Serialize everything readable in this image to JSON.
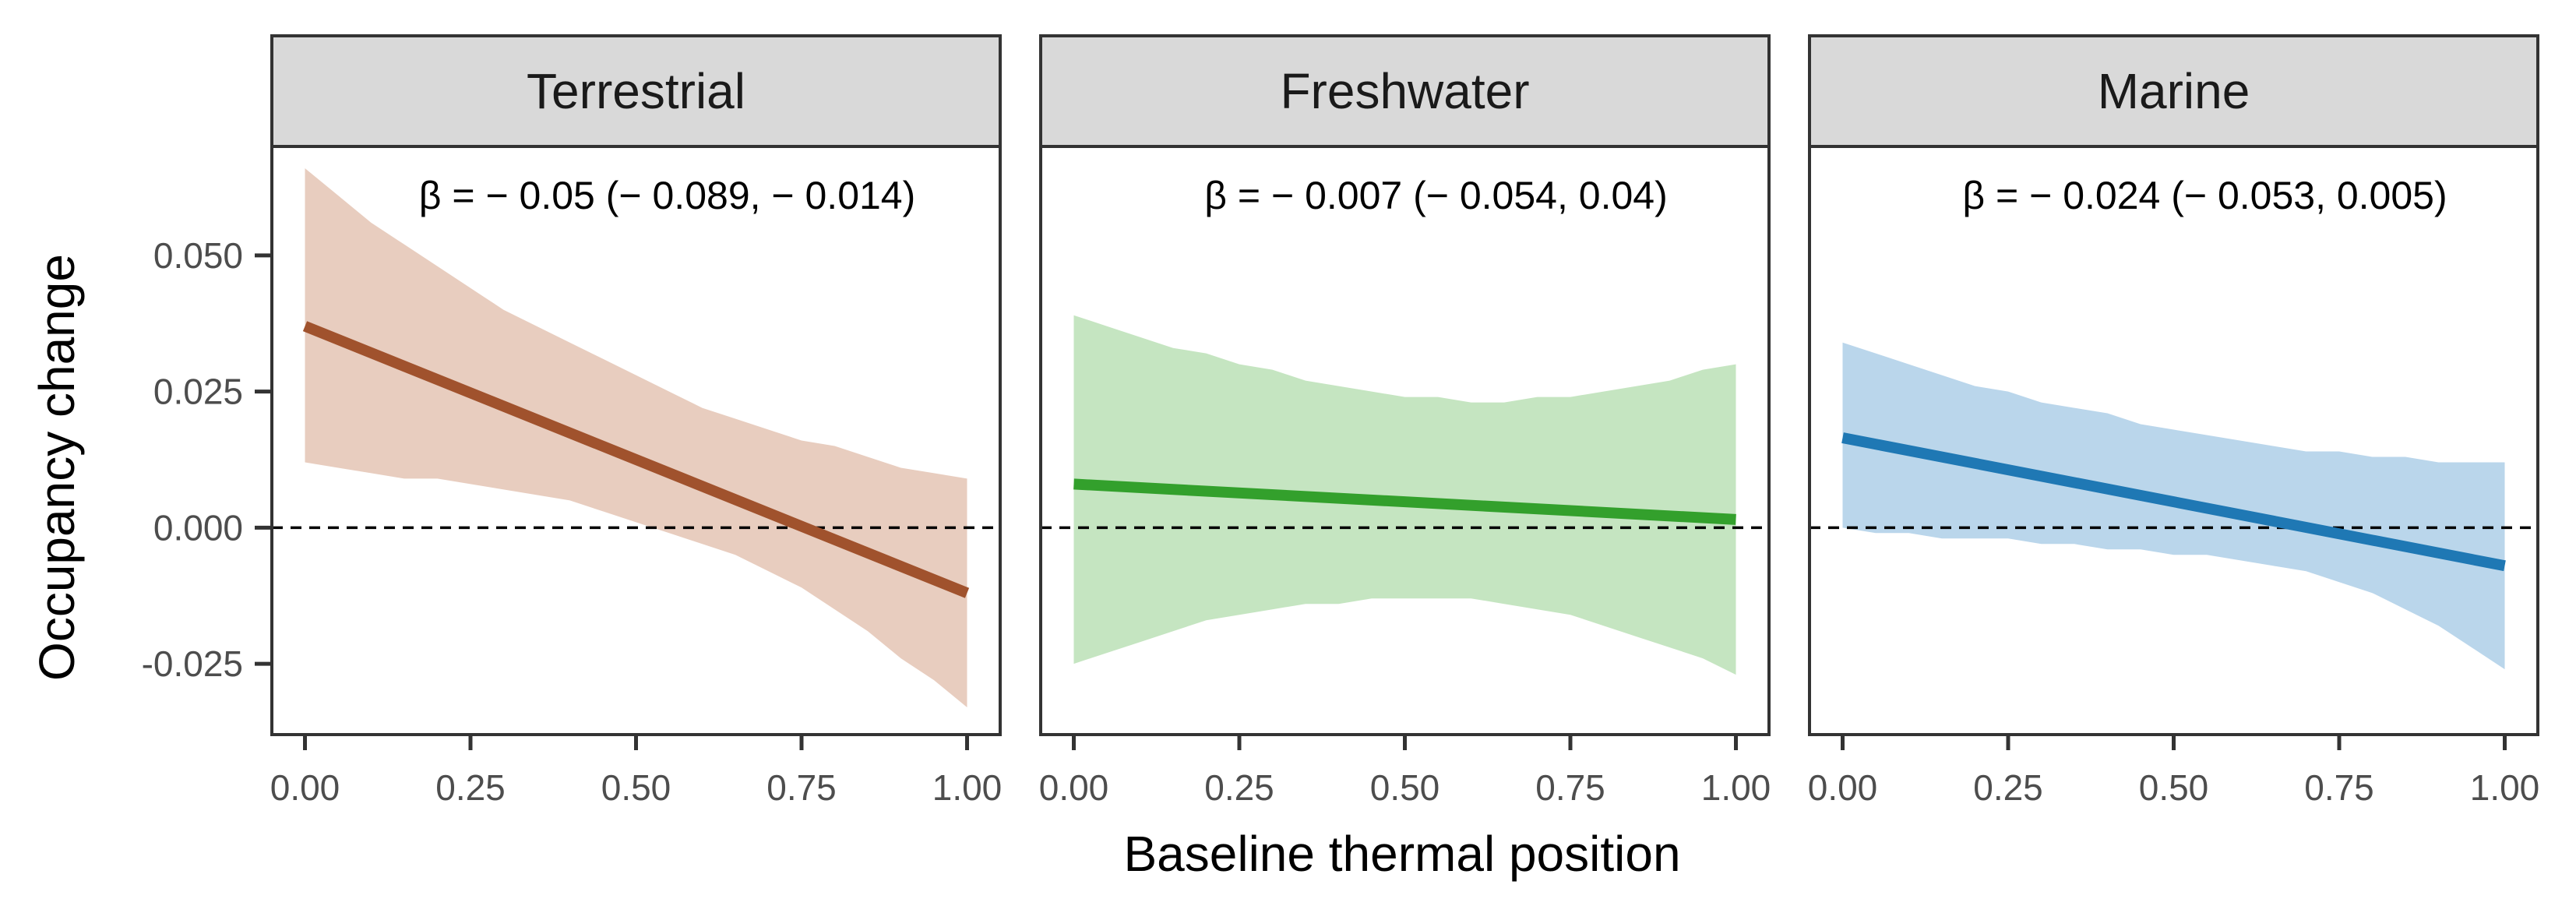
{
  "chart_data": {
    "type": "line",
    "xlabel": "Baseline thermal position",
    "ylabel": "Occupancy change",
    "xlim": [
      -0.05,
      1.05
    ],
    "ylim": [
      -0.038,
      0.07
    ],
    "x_ticks": [
      0,
      0.25,
      0.5,
      0.75,
      1
    ],
    "x_tick_labels": [
      "0.00",
      "0.25",
      "0.50",
      "0.75",
      "1.00"
    ],
    "y_ticks": [
      -0.025,
      0,
      0.025,
      0.05
    ],
    "y_tick_labels": [
      "-0.025",
      "0.000",
      "0.025",
      "0.050"
    ],
    "reference_line": {
      "y": 0,
      "style": "dashed"
    },
    "grid": false,
    "panels": [
      {
        "label": "Terrestrial",
        "annotation": "β = − 0.05 (− 0.089, − 0.014)",
        "color": "#a0522d",
        "band_color": "#e8cdbf",
        "line": {
          "x": [
            0,
            1
          ],
          "y": [
            0.037,
            -0.012
          ]
        },
        "band": {
          "x": [
            0,
            0.05,
            0.1,
            0.15,
            0.2,
            0.25,
            0.3,
            0.35,
            0.4,
            0.45,
            0.5,
            0.55,
            0.6,
            0.65,
            0.7,
            0.75,
            0.8,
            0.85,
            0.9,
            0.95,
            1
          ],
          "upper": [
            0.066,
            0.061,
            0.056,
            0.052,
            0.048,
            0.044,
            0.04,
            0.037,
            0.034,
            0.031,
            0.028,
            0.025,
            0.022,
            0.02,
            0.018,
            0.016,
            0.015,
            0.013,
            0.011,
            0.01,
            0.009
          ],
          "lower": [
            0.012,
            0.011,
            0.01,
            0.009,
            0.009,
            0.008,
            0.007,
            0.006,
            0.005,
            0.003,
            0.001,
            -0.001,
            -0.003,
            -0.005,
            -0.008,
            -0.011,
            -0.015,
            -0.019,
            -0.024,
            -0.028,
            -0.033
          ]
        }
      },
      {
        "label": "Freshwater",
        "annotation": "β = − 0.007 (− 0.054, 0.04)",
        "color": "#33a02c",
        "band_color": "#c5e5c1",
        "line": {
          "x": [
            0,
            1
          ],
          "y": [
            0.008,
            0.0015
          ]
        },
        "band": {
          "x": [
            0,
            0.05,
            0.1,
            0.15,
            0.2,
            0.25,
            0.3,
            0.35,
            0.4,
            0.45,
            0.5,
            0.55,
            0.6,
            0.65,
            0.7,
            0.75,
            0.8,
            0.85,
            0.9,
            0.95,
            1
          ],
          "upper": [
            0.039,
            0.037,
            0.035,
            0.033,
            0.032,
            0.03,
            0.029,
            0.027,
            0.026,
            0.025,
            0.024,
            0.024,
            0.023,
            0.023,
            0.024,
            0.024,
            0.025,
            0.026,
            0.027,
            0.029,
            0.03
          ],
          "lower": [
            -0.025,
            -0.023,
            -0.021,
            -0.019,
            -0.017,
            -0.016,
            -0.015,
            -0.014,
            -0.014,
            -0.013,
            -0.013,
            -0.013,
            -0.013,
            -0.014,
            -0.015,
            -0.016,
            -0.018,
            -0.02,
            -0.022,
            -0.024,
            -0.027
          ]
        }
      },
      {
        "label": "Marine",
        "annotation": "β = − 0.024 (− 0.053, 0.005)",
        "color": "#1f78b4",
        "band_color": "#bad6eb",
        "line": {
          "x": [
            0,
            1
          ],
          "y": [
            0.0165,
            -0.007
          ]
        },
        "band": {
          "x": [
            0,
            0.05,
            0.1,
            0.15,
            0.2,
            0.25,
            0.3,
            0.35,
            0.4,
            0.45,
            0.5,
            0.55,
            0.6,
            0.65,
            0.7,
            0.75,
            0.8,
            0.85,
            0.9,
            0.95,
            1
          ],
          "upper": [
            0.034,
            0.032,
            0.03,
            0.028,
            0.026,
            0.025,
            0.023,
            0.022,
            0.021,
            0.019,
            0.018,
            0.017,
            0.016,
            0.015,
            0.014,
            0.014,
            0.013,
            0.013,
            0.012,
            0.012,
            0.012
          ],
          "lower": [
            0.0,
            -0.001,
            -0.001,
            -0.002,
            -0.002,
            -0.002,
            -0.003,
            -0.003,
            -0.004,
            -0.004,
            -0.005,
            -0.005,
            -0.006,
            -0.007,
            -0.008,
            -0.01,
            -0.012,
            -0.015,
            -0.018,
            -0.022,
            -0.026
          ]
        }
      }
    ]
  }
}
